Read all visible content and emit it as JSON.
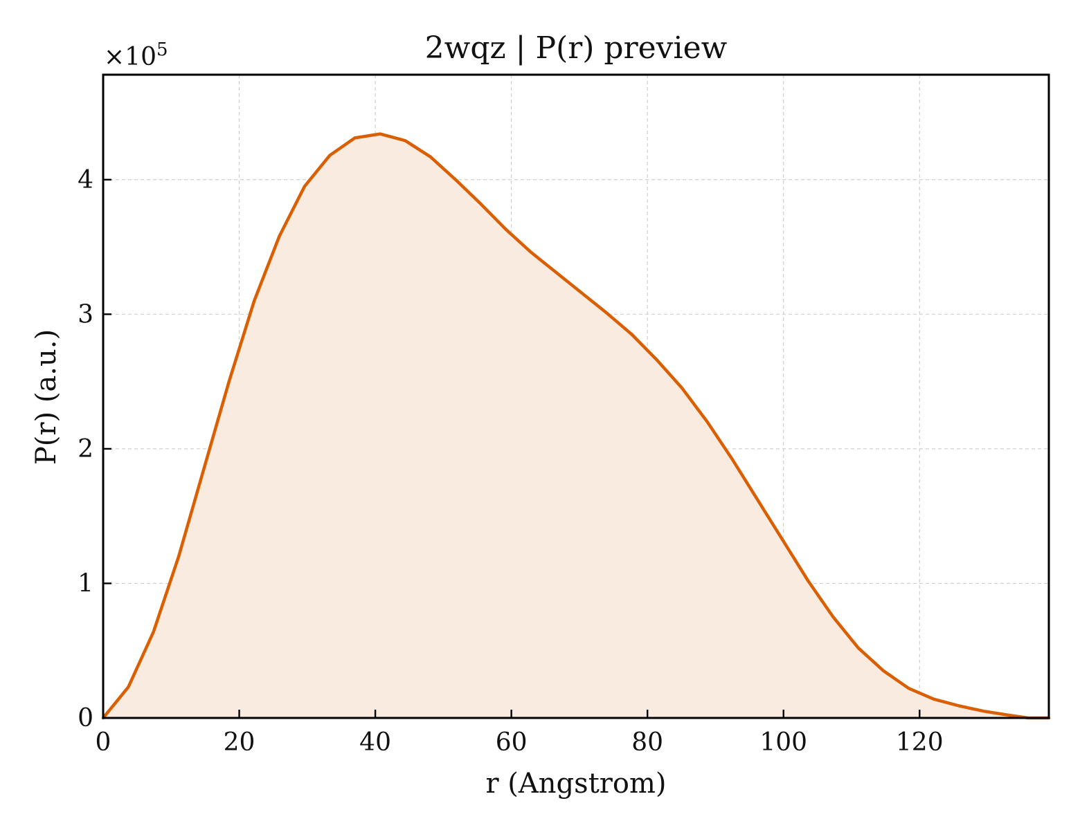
{
  "chart_data": {
    "type": "area",
    "title": "2wqz | P(r) preview",
    "xlabel": "r (Angstrom)",
    "ylabel": "P(r) (a.u.)",
    "y_scale_label": "×10",
    "y_scale_exponent": "5",
    "xlim": [
      0,
      139
    ],
    "ylim": [
      0,
      4.78
    ],
    "x_ticks": [
      0,
      20,
      40,
      60,
      80,
      100,
      120
    ],
    "y_ticks": [
      0,
      1,
      2,
      3,
      4
    ],
    "x_tick_labels": [
      "0",
      "20",
      "40",
      "60",
      "80",
      "100",
      "120"
    ],
    "y_tick_labels": [
      "0",
      "1",
      "2",
      "3",
      "4"
    ],
    "grid": true,
    "line_color": "#d95f02",
    "fill_color": "#f9ebe0",
    "series": [
      {
        "x": [
          0,
          3.7,
          7.4,
          11.1,
          14.8,
          18.5,
          22.2,
          25.9,
          29.6,
          33.3,
          37.0,
          40.7,
          44.4,
          48.1,
          51.8,
          55.5,
          59.2,
          62.9,
          66.6,
          70.3,
          74.0,
          77.7,
          81.4,
          85.1,
          88.8,
          92.5,
          96.2,
          99.9,
          103.6,
          107.3,
          111.0,
          114.7,
          118.4,
          122.1,
          125.8,
          129.5,
          133.2,
          136.0,
          139.0
        ],
        "y": [
          0.0,
          0.23,
          0.64,
          1.2,
          1.85,
          2.5,
          3.1,
          3.58,
          3.95,
          4.18,
          4.31,
          4.34,
          4.29,
          4.17,
          4.0,
          3.82,
          3.63,
          3.46,
          3.31,
          3.16,
          3.01,
          2.85,
          2.66,
          2.45,
          2.2,
          1.92,
          1.62,
          1.32,
          1.02,
          0.75,
          0.52,
          0.35,
          0.22,
          0.14,
          0.09,
          0.05,
          0.02,
          0.0,
          0.0
        ]
      }
    ]
  }
}
